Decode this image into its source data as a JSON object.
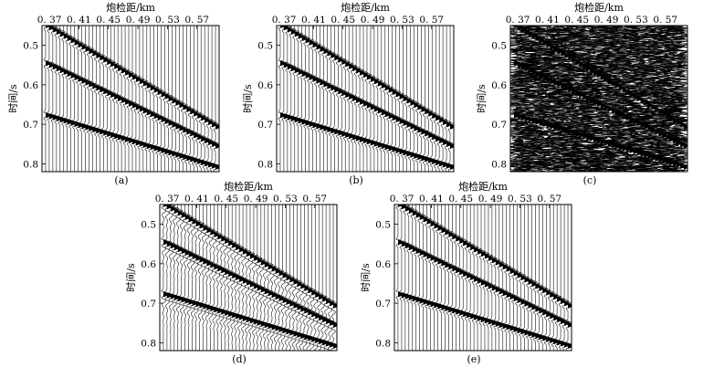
{
  "figure": {
    "shared": {
      "x_label": "炮检距/km",
      "y_label": "时间/s",
      "x_ticks": [
        "0. 37",
        "0. 41",
        "0. 45",
        "0. 49",
        "0. 53",
        "0. 57"
      ],
      "y_ticks": [
        "0.5",
        "0.6",
        "0.7",
        "0.8"
      ]
    },
    "panels": [
      {
        "id": "a",
        "caption": "(a)",
        "noise": 0,
        "distortion": 0
      },
      {
        "id": "b",
        "caption": "(b)",
        "noise": 0,
        "distortion": 0
      },
      {
        "id": "c",
        "caption": "(c)",
        "noise": 1,
        "distortion": 0
      },
      {
        "id": "d",
        "caption": "(d)",
        "noise": 0,
        "distortion": 1
      },
      {
        "id": "e",
        "caption": "(e)",
        "noise": 0,
        "distortion": 0
      }
    ]
  },
  "chart_data": [
    {
      "type": "wiggle-trace seismic gather",
      "panel": "a",
      "xlabel": "炮检距/km",
      "ylabel": "时间/s",
      "xlim": [
        0.36,
        0.6
      ],
      "ylim": [
        0.45,
        0.82
      ],
      "x_ticks": [
        0.37,
        0.41,
        0.45,
        0.49,
        0.53,
        0.57
      ],
      "y_ticks": [
        0.5,
        0.6,
        0.7,
        0.8
      ],
      "trace_count": 48,
      "events": [
        {
          "x": [
            0.37,
            0.59
          ],
          "t": [
            0.455,
            0.7
          ]
        },
        {
          "x": [
            0.37,
            0.59
          ],
          "t": [
            0.55,
            0.75
          ]
        },
        {
          "x": [
            0.37,
            0.59
          ],
          "t": [
            0.68,
            0.805
          ]
        }
      ]
    },
    {
      "type": "wiggle-trace seismic gather",
      "panel": "b",
      "xlabel": "炮检距/km",
      "ylabel": "时间/s",
      "xlim": [
        0.36,
        0.6
      ],
      "ylim": [
        0.45,
        0.82
      ],
      "x_ticks": [
        0.37,
        0.41,
        0.45,
        0.49,
        0.53,
        0.57
      ],
      "y_ticks": [
        0.5,
        0.6,
        0.7,
        0.8
      ],
      "trace_count": 48,
      "events": [
        {
          "x": [
            0.37,
            0.59
          ],
          "t": [
            0.455,
            0.7
          ]
        },
        {
          "x": [
            0.37,
            0.59
          ],
          "t": [
            0.55,
            0.75
          ]
        },
        {
          "x": [
            0.37,
            0.59
          ],
          "t": [
            0.68,
            0.805
          ]
        }
      ]
    },
    {
      "type": "wiggle-trace seismic gather",
      "panel": "c",
      "xlabel": "炮检距/km",
      "ylabel": "时间/s",
      "xlim": [
        0.36,
        0.6
      ],
      "ylim": [
        0.45,
        0.82
      ],
      "x_ticks": [
        0.37,
        0.41,
        0.45,
        0.49,
        0.53,
        0.57
      ],
      "y_ticks": [
        0.5,
        0.6,
        0.7,
        0.8
      ],
      "trace_count": 48,
      "events": [
        {
          "x": [
            0.37,
            0.59
          ],
          "t": [
            0.455,
            0.7
          ]
        },
        {
          "x": [
            0.37,
            0.59
          ],
          "t": [
            0.55,
            0.75
          ]
        },
        {
          "x": [
            0.37,
            0.59
          ],
          "t": [
            0.68,
            0.805
          ]
        }
      ]
    },
    {
      "type": "wiggle-trace seismic gather",
      "panel": "d",
      "xlabel": "炮检距/km",
      "ylabel": "时间/s",
      "xlim": [
        0.36,
        0.6
      ],
      "ylim": [
        0.45,
        0.82
      ],
      "x_ticks": [
        0.37,
        0.41,
        0.45,
        0.49,
        0.53,
        0.57
      ],
      "y_ticks": [
        0.5,
        0.6,
        0.7,
        0.8
      ],
      "trace_count": 48,
      "events": [
        {
          "x": [
            0.37,
            0.59
          ],
          "t": [
            0.455,
            0.7
          ]
        },
        {
          "x": [
            0.37,
            0.59
          ],
          "t": [
            0.55,
            0.75
          ]
        },
        {
          "x": [
            0.37,
            0.59
          ],
          "t": [
            0.68,
            0.805
          ]
        }
      ]
    },
    {
      "type": "wiggle-trace seismic gather",
      "panel": "e",
      "xlabel": "炮检距/km",
      "ylabel": "时间/s",
      "xlim": [
        0.36,
        0.6
      ],
      "ylim": [
        0.45,
        0.82
      ],
      "x_ticks": [
        0.37,
        0.41,
        0.45,
        0.49,
        0.53,
        0.57
      ],
      "y_ticks": [
        0.5,
        0.6,
        0.7,
        0.8
      ],
      "trace_count": 48,
      "events": [
        {
          "x": [
            0.37,
            0.59
          ],
          "t": [
            0.455,
            0.7
          ]
        },
        {
          "x": [
            0.37,
            0.59
          ],
          "t": [
            0.55,
            0.75
          ]
        },
        {
          "x": [
            0.37,
            0.59
          ],
          "t": [
            0.68,
            0.805
          ]
        }
      ]
    }
  ]
}
